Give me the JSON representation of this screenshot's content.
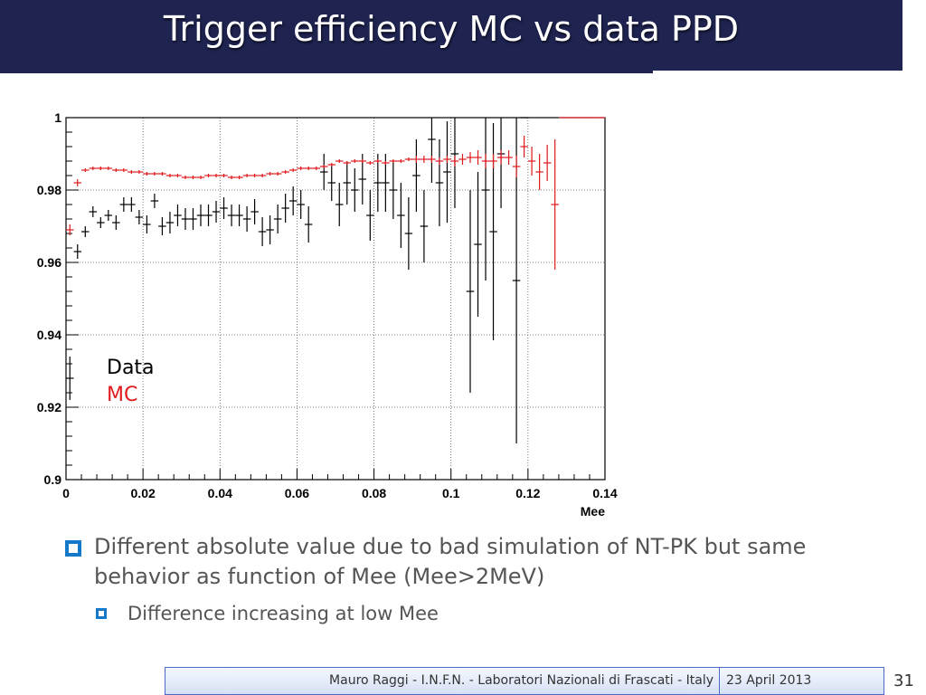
{
  "slide": {
    "title": "Trigger efficiency MC vs data PPD",
    "bullets": [
      {
        "text": "Different absolute value due to bad simulation of NT-PK but same behavior as function of Mee (Mee>2MeV)",
        "children": [
          {
            "text": "Difference increasing at low Mee"
          }
        ]
      }
    ]
  },
  "footer": {
    "author": "Mauro Raggi - I.N.F.N. - Laboratori Nazionali di Frascati - Italy",
    "date": "23 April 2013",
    "page": "31"
  },
  "colors": {
    "title_bar": "#1e2350",
    "data_series": "#000000",
    "mc_series": "#e0191c",
    "bullet": "#1479c8"
  },
  "chart_data": {
    "type": "scatter",
    "xlabel": "Mee",
    "ylabel": "",
    "xlim": [
      0,
      0.14
    ],
    "ylim": [
      0.9,
      1.0
    ],
    "grid": true,
    "legend_position": "bottom-left",
    "x_ticks": [
      "0",
      "0.02",
      "0.04",
      "0.06",
      "0.08",
      "0.1",
      "0.12",
      "0.14"
    ],
    "y_ticks": [
      "0.9",
      "0.92",
      "0.94",
      "0.96",
      "0.98",
      "1"
    ],
    "bin_width": 0.002,
    "series": [
      {
        "name": "Data",
        "color": "#000000",
        "points": [
          [
            0.001,
            0.928,
            0.006
          ],
          [
            0.003,
            0.963,
            0.002
          ],
          [
            0.005,
            0.9685,
            0.0015
          ],
          [
            0.007,
            0.974,
            0.0015
          ],
          [
            0.009,
            0.971,
            0.0015
          ],
          [
            0.011,
            0.973,
            0.0015
          ],
          [
            0.013,
            0.971,
            0.002
          ],
          [
            0.015,
            0.976,
            0.002
          ],
          [
            0.017,
            0.976,
            0.002
          ],
          [
            0.019,
            0.9725,
            0.002
          ],
          [
            0.021,
            0.9705,
            0.0025
          ],
          [
            0.023,
            0.977,
            0.002
          ],
          [
            0.025,
            0.97,
            0.0025
          ],
          [
            0.027,
            0.971,
            0.003
          ],
          [
            0.029,
            0.973,
            0.003
          ],
          [
            0.031,
            0.972,
            0.003
          ],
          [
            0.033,
            0.972,
            0.003
          ],
          [
            0.035,
            0.973,
            0.003
          ],
          [
            0.037,
            0.973,
            0.003
          ],
          [
            0.039,
            0.974,
            0.003
          ],
          [
            0.041,
            0.975,
            0.003
          ],
          [
            0.043,
            0.973,
            0.003
          ],
          [
            0.045,
            0.973,
            0.003
          ],
          [
            0.047,
            0.972,
            0.0035
          ],
          [
            0.049,
            0.974,
            0.0035
          ],
          [
            0.051,
            0.9685,
            0.004
          ],
          [
            0.053,
            0.969,
            0.004
          ],
          [
            0.055,
            0.972,
            0.004
          ],
          [
            0.057,
            0.975,
            0.004
          ],
          [
            0.059,
            0.977,
            0.004
          ],
          [
            0.061,
            0.976,
            0.004
          ],
          [
            0.063,
            0.9705,
            0.005
          ],
          [
            0.067,
            0.985,
            0.005
          ],
          [
            0.069,
            0.982,
            0.005
          ],
          [
            0.071,
            0.976,
            0.006
          ],
          [
            0.073,
            0.982,
            0.006
          ],
          [
            0.075,
            0.98,
            0.006
          ],
          [
            0.077,
            0.983,
            0.007
          ],
          [
            0.079,
            0.973,
            0.007
          ],
          [
            0.081,
            0.982,
            0.008
          ],
          [
            0.083,
            0.982,
            0.008
          ],
          [
            0.085,
            0.98,
            0.008
          ],
          [
            0.087,
            0.973,
            0.009
          ],
          [
            0.089,
            0.968,
            0.01
          ],
          [
            0.091,
            0.984,
            0.01
          ],
          [
            0.093,
            0.97,
            0.01
          ],
          [
            0.095,
            0.994,
            0.012
          ],
          [
            0.097,
            0.982,
            0.012
          ],
          [
            0.099,
            0.985,
            0.014
          ],
          [
            0.101,
            0.99,
            0.015
          ],
          [
            0.105,
            0.952,
            0.028
          ],
          [
            0.107,
            0.965,
            0.02
          ],
          [
            0.109,
            0.98,
            0.025
          ],
          [
            0.111,
            0.9685,
            0.03
          ],
          [
            0.113,
            0.99,
            0.015
          ],
          [
            0.117,
            0.955,
            0.045
          ],
          [
            0.119,
            1.0,
            0.0
          ]
        ]
      },
      {
        "name": "MC",
        "color": "#e0191c",
        "points": [
          [
            0.001,
            0.969,
            0.0015
          ],
          [
            0.003,
            0.982,
            0.001
          ],
          [
            0.005,
            0.9855,
            0.0005
          ],
          [
            0.007,
            0.986,
            0.0005
          ],
          [
            0.009,
            0.986,
            0.0005
          ],
          [
            0.011,
            0.986,
            0.0005
          ],
          [
            0.013,
            0.9855,
            0.0005
          ],
          [
            0.015,
            0.9855,
            0.0005
          ],
          [
            0.017,
            0.985,
            0.0005
          ],
          [
            0.019,
            0.985,
            0.0005
          ],
          [
            0.021,
            0.9845,
            0.0005
          ],
          [
            0.023,
            0.9845,
            0.0005
          ],
          [
            0.025,
            0.9845,
            0.0005
          ],
          [
            0.027,
            0.984,
            0.0005
          ],
          [
            0.029,
            0.984,
            0.0005
          ],
          [
            0.031,
            0.9835,
            0.0005
          ],
          [
            0.033,
            0.9835,
            0.0005
          ],
          [
            0.035,
            0.9835,
            0.0005
          ],
          [
            0.037,
            0.984,
            0.0005
          ],
          [
            0.039,
            0.984,
            0.0005
          ],
          [
            0.041,
            0.984,
            0.0005
          ],
          [
            0.043,
            0.9835,
            0.0005
          ],
          [
            0.045,
            0.9835,
            0.0005
          ],
          [
            0.047,
            0.984,
            0.0005
          ],
          [
            0.049,
            0.984,
            0.0005
          ],
          [
            0.051,
            0.984,
            0.0005
          ],
          [
            0.053,
            0.9845,
            0.0005
          ],
          [
            0.055,
            0.9845,
            0.0005
          ],
          [
            0.057,
            0.985,
            0.0005
          ],
          [
            0.059,
            0.9855,
            0.0005
          ],
          [
            0.061,
            0.986,
            0.0005
          ],
          [
            0.063,
            0.986,
            0.0005
          ],
          [
            0.065,
            0.986,
            0.0005
          ],
          [
            0.067,
            0.9865,
            0.0005
          ],
          [
            0.069,
            0.987,
            0.0005
          ],
          [
            0.071,
            0.988,
            0.0005
          ],
          [
            0.073,
            0.9875,
            0.0005
          ],
          [
            0.075,
            0.988,
            0.0005
          ],
          [
            0.077,
            0.988,
            0.0005
          ],
          [
            0.079,
            0.9875,
            0.0005
          ],
          [
            0.081,
            0.988,
            0.0005
          ],
          [
            0.083,
            0.9875,
            0.0005
          ],
          [
            0.085,
            0.988,
            0.0005
          ],
          [
            0.087,
            0.988,
            0.0005
          ],
          [
            0.089,
            0.9885,
            0.0005
          ],
          [
            0.091,
            0.9885,
            0.001
          ],
          [
            0.093,
            0.9885,
            0.001
          ],
          [
            0.095,
            0.9885,
            0.001
          ],
          [
            0.097,
            0.988,
            0.001
          ],
          [
            0.099,
            0.9885,
            0.001
          ],
          [
            0.101,
            0.988,
            0.0015
          ],
          [
            0.103,
            0.9885,
            0.0015
          ],
          [
            0.105,
            0.989,
            0.0015
          ],
          [
            0.107,
            0.989,
            0.002
          ],
          [
            0.109,
            0.988,
            0.002
          ],
          [
            0.111,
            0.988,
            0.002
          ],
          [
            0.113,
            0.989,
            0.002
          ],
          [
            0.115,
            0.989,
            0.002
          ],
          [
            0.117,
            0.9865,
            0.003
          ],
          [
            0.119,
            0.992,
            0.003
          ],
          [
            0.121,
            0.988,
            0.004
          ],
          [
            0.123,
            0.985,
            0.005
          ],
          [
            0.125,
            0.9875,
            0.005
          ],
          [
            0.127,
            0.976,
            0.018
          ],
          [
            0.129,
            1.0,
            0.0
          ],
          [
            0.131,
            1.0,
            0.0
          ],
          [
            0.133,
            1.0,
            0.0
          ],
          [
            0.135,
            1.0,
            0.0
          ],
          [
            0.137,
            1.0,
            0.0
          ],
          [
            0.139,
            1.0,
            0.0
          ]
        ]
      }
    ]
  }
}
